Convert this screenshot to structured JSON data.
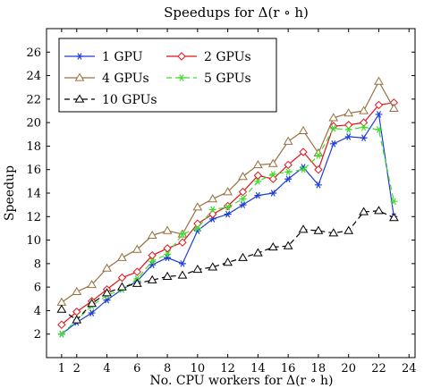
{
  "chart_data": {
    "type": "line",
    "title": "Speedups for Δ(r ∘ h)",
    "xlabel": "No. CPU workers for Δ(r ∘ h)",
    "ylabel": "Speedup",
    "xlim": [
      0,
      24.4
    ],
    "ylim": [
      0,
      28
    ],
    "xticks": [
      1,
      2,
      4,
      6,
      8,
      10,
      12,
      14,
      16,
      18,
      20,
      22,
      24
    ],
    "yticks": [
      2,
      4,
      6,
      8,
      10,
      12,
      14,
      16,
      18,
      20,
      22,
      24,
      26
    ],
    "grid": false,
    "legend_position": "top-left",
    "x": [
      1,
      2,
      3,
      4,
      5,
      6,
      7,
      8,
      9,
      10,
      11,
      12,
      13,
      14,
      15,
      16,
      17,
      18,
      19,
      20,
      21,
      22,
      23
    ],
    "series": [
      {
        "name": "1 GPU",
        "color": "#1f3fd6",
        "marker": "star",
        "dash": "solid",
        "values": [
          2.0,
          3.0,
          3.8,
          4.9,
          5.8,
          6.5,
          7.9,
          8.5,
          8.0,
          10.8,
          11.8,
          12.2,
          13.0,
          13.8,
          14.0,
          15.2,
          16.2,
          14.7,
          18.2,
          18.8,
          18.7,
          20.7,
          12.0
        ]
      },
      {
        "name": "2 GPUs",
        "color": "#e0141b",
        "marker": "diamond",
        "dash": "solid",
        "values": [
          2.8,
          3.9,
          4.8,
          5.8,
          6.8,
          7.3,
          8.7,
          9.3,
          9.8,
          11.4,
          12.2,
          12.9,
          14.1,
          15.5,
          15.2,
          16.4,
          17.5,
          16.0,
          19.7,
          19.8,
          20.0,
          21.5,
          21.7
        ]
      },
      {
        "name": "4 GPUs",
        "color": "#96703f",
        "marker": "triangle",
        "dash": "solid",
        "values": [
          4.7,
          5.6,
          6.2,
          7.6,
          8.5,
          9.2,
          10.4,
          10.8,
          10.5,
          12.8,
          13.5,
          14.1,
          15.4,
          16.4,
          16.5,
          18.4,
          19.3,
          17.4,
          20.4,
          20.8,
          21.0,
          23.5,
          21.2
        ]
      },
      {
        "name": "5 GPUs",
        "color": "#3fdc2c",
        "marker": "star",
        "dash": "dashed",
        "values": [
          2.0,
          3.2,
          4.4,
          5.3,
          5.8,
          6.7,
          8.2,
          8.8,
          10.5,
          11.0,
          12.6,
          12.8,
          13.5,
          15.0,
          15.6,
          15.8,
          16.0,
          17.2,
          19.5,
          19.4,
          19.6,
          19.4,
          13.3
        ]
      },
      {
        "name": "10 GPUs",
        "color": "#000000",
        "marker": "triangle-open",
        "dash": "dashed",
        "values": [
          4.1,
          3.2,
          4.6,
          5.5,
          6.0,
          6.3,
          6.6,
          6.9,
          7.0,
          7.5,
          7.7,
          8.1,
          8.5,
          8.9,
          9.4,
          9.5,
          10.9,
          10.8,
          10.6,
          10.8,
          12.4,
          12.5,
          11.9
        ]
      }
    ]
  }
}
